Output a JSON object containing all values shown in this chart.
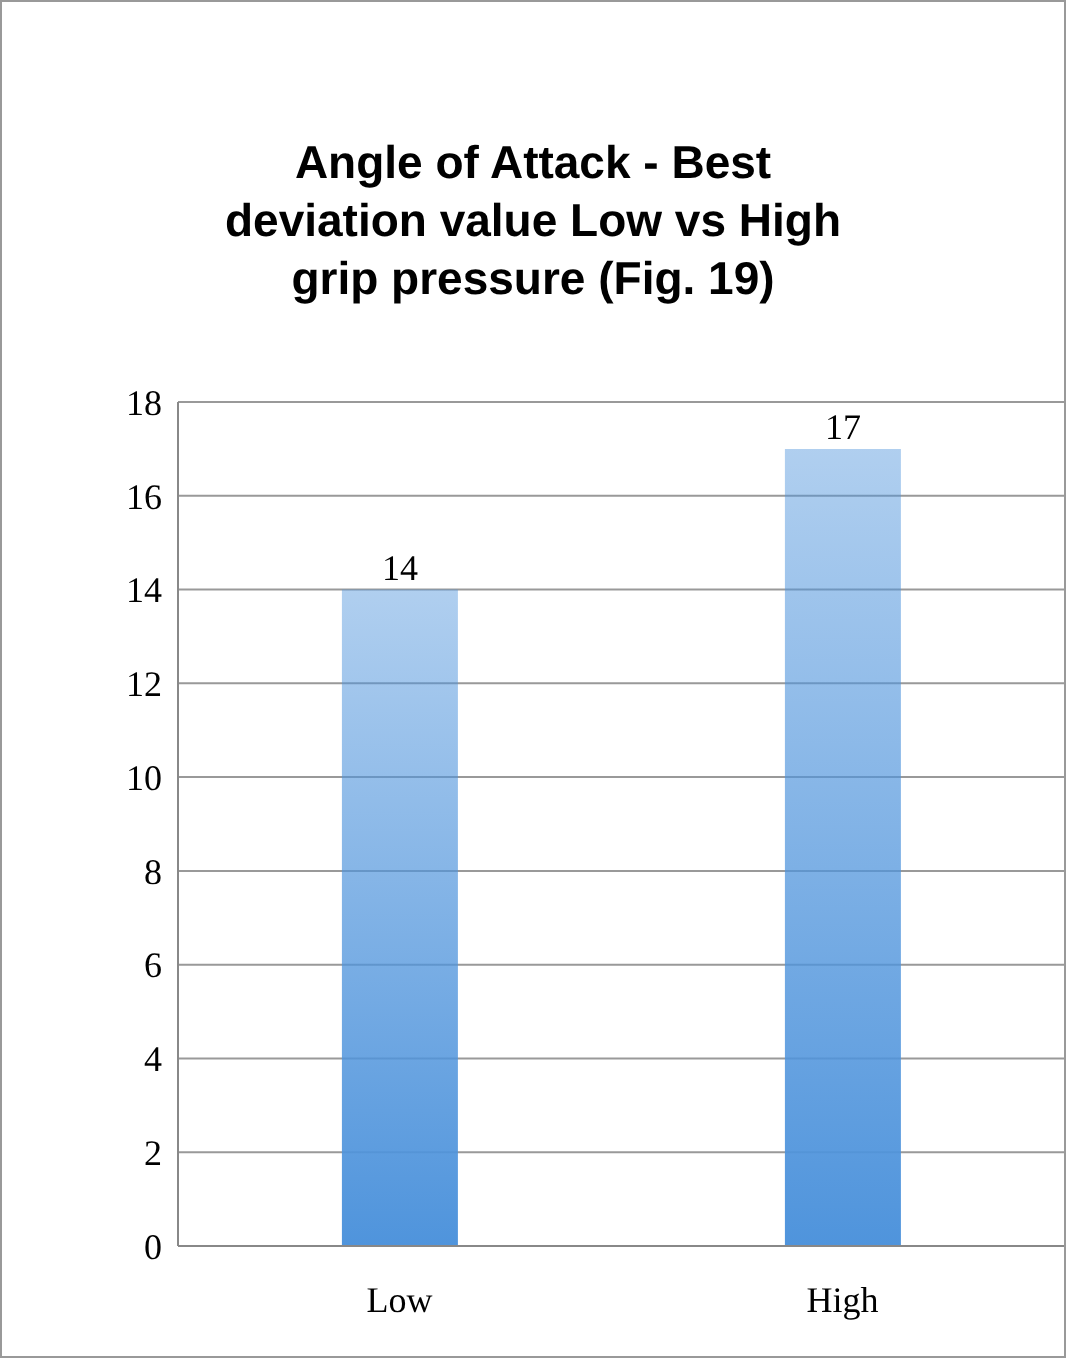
{
  "chart_data": {
    "type": "bar",
    "title": "Angle of Attack - Best deviation value Low vs High grip pressure (Fig. 19)",
    "categories": [
      "Low",
      "High"
    ],
    "values": [
      14,
      17
    ],
    "color": "#4f94dc",
    "ylim": [
      0,
      18
    ],
    "yticks": [
      0,
      2,
      4,
      6,
      8,
      10,
      12,
      14,
      16,
      18
    ],
    "grid": "y",
    "data_labels": true
  }
}
